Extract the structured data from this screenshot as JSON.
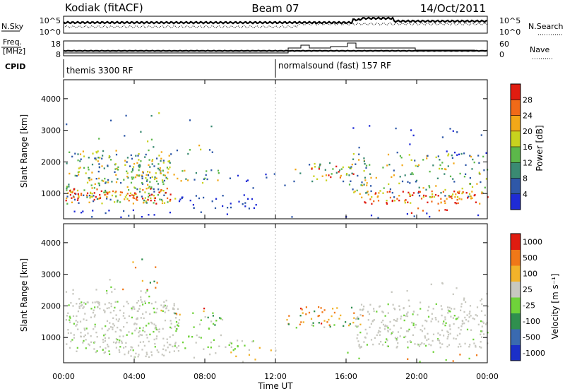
{
  "header": {
    "station": "Kodiak (fitACF)",
    "beam": "Beam 07",
    "date": "14/Oct/2011"
  },
  "top_panels": {
    "nsky_label": "N.Sky",
    "nsearch_label": "N.Search",
    "noise_ticks_left": [
      "10^5",
      "10^0"
    ],
    "noise_ticks_right": [
      "10^5",
      "10^0"
    ],
    "freq_label": "Freq.",
    "freq_unit": "[MHz]",
    "freq_ticks": [
      "18",
      "8"
    ],
    "nave_label": "Nave",
    "nave_ticks": [
      "60",
      "0"
    ],
    "cpid_label": "CPID",
    "cpid_segments": [
      {
        "label": "themis 3300 RF",
        "start_hour": 0
      },
      {
        "label": "normalsound (fast) 157 RF",
        "start_hour": 12
      }
    ]
  },
  "chart_data": [
    {
      "type": "heatmap",
      "name": "power",
      "ylabel": "Slant Range [km]",
      "yticks": [
        1000,
        2000,
        3000,
        4000
      ],
      "ylim": [
        200,
        4600
      ],
      "xlim": [
        0,
        24
      ],
      "colorbar_label": "Power [dB]",
      "colorbar_ticks": [
        "4",
        "8",
        "12",
        "16",
        "20",
        "24",
        "28"
      ],
      "colorbar_colors": [
        "#1f2bd6",
        "#2f58a8",
        "#3a8a72",
        "#5cb84a",
        "#c8d21e",
        "#f2a818",
        "#f06a18",
        "#e01c10"
      ]
    },
    {
      "type": "heatmap",
      "name": "velocity",
      "ylabel": "Slant Range [km]",
      "yticks": [
        1000,
        2000,
        3000,
        4000
      ],
      "ylim": [
        200,
        4600
      ],
      "xlim": [
        0,
        24
      ],
      "xticks": [
        "00:00",
        "04:00",
        "08:00",
        "12:00",
        "16:00",
        "20:00",
        "00:00"
      ],
      "xlabel": "Time UT",
      "colorbar_label": "Velocity [m s⁻¹]",
      "colorbar_ticks": [
        "1000",
        "500",
        "100",
        "25",
        "-25",
        "-100",
        "-500",
        "-1000"
      ],
      "colorbar_colors": [
        "#1b2fc8",
        "#3a6ab0",
        "#2f8f4e",
        "#6fd23a",
        "#c8c8c0",
        "#f2b32a",
        "#f07818",
        "#e01c10"
      ]
    }
  ]
}
